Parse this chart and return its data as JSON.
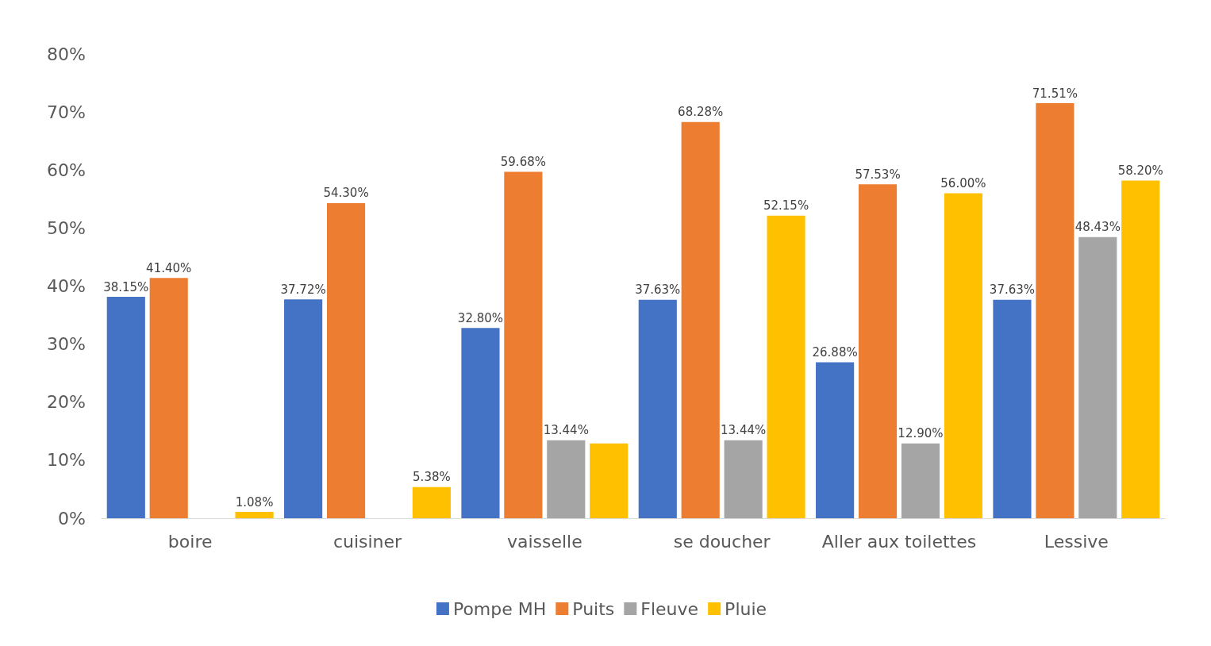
{
  "chart_data": {
    "type": "bar",
    "categories": [
      "boire",
      "cuisiner",
      "vaisselle",
      "se doucher",
      "Aller aux toilettes",
      "Lessive"
    ],
    "series": [
      {
        "name": "Pompe MH",
        "color": "#4472c4",
        "values": [
          38.15,
          37.72,
          32.8,
          37.63,
          26.88,
          37.63
        ],
        "value_labels": [
          "38.15%",
          "37.72%",
          "32.80%",
          "37.63%",
          "26.88%",
          "37.63%"
        ]
      },
      {
        "name": "Puits",
        "color": "#ed7d31",
        "values": [
          41.4,
          54.3,
          59.68,
          68.28,
          57.53,
          71.51
        ],
        "value_labels": [
          "41.40%",
          "54.30%",
          "59.68%",
          "68.28%",
          "57.53%",
          "71.51%"
        ]
      },
      {
        "name": "Fleuve",
        "color": "#a5a5a5",
        "values": [
          null,
          null,
          13.44,
          13.44,
          12.9,
          48.43
        ],
        "value_labels": [
          null,
          null,
          "13.44%",
          "13.44%",
          "12.90%",
          "48.43%"
        ]
      },
      {
        "name": "Pluie",
        "color": "#ffc000",
        "values": [
          1.08,
          5.38,
          12.9,
          52.15,
          56.0,
          58.2
        ],
        "value_labels": [
          "1.08%",
          "5.38%",
          null,
          "52.15%",
          "56.00%",
          "58.20%"
        ]
      }
    ],
    "ylim": [
      0,
      80
    ],
    "yticks": [
      {
        "value": 0,
        "label": "0%"
      },
      {
        "value": 10,
        "label": "10%"
      },
      {
        "value": 20,
        "label": "20%"
      },
      {
        "value": 30,
        "label": "30%"
      },
      {
        "value": 40,
        "label": "40%"
      },
      {
        "value": 50,
        "label": "50%"
      },
      {
        "value": 60,
        "label": "60%"
      },
      {
        "value": 70,
        "label": "70%"
      },
      {
        "value": 80,
        "label": "80%"
      }
    ],
    "grid": false,
    "legend": "bottom"
  }
}
